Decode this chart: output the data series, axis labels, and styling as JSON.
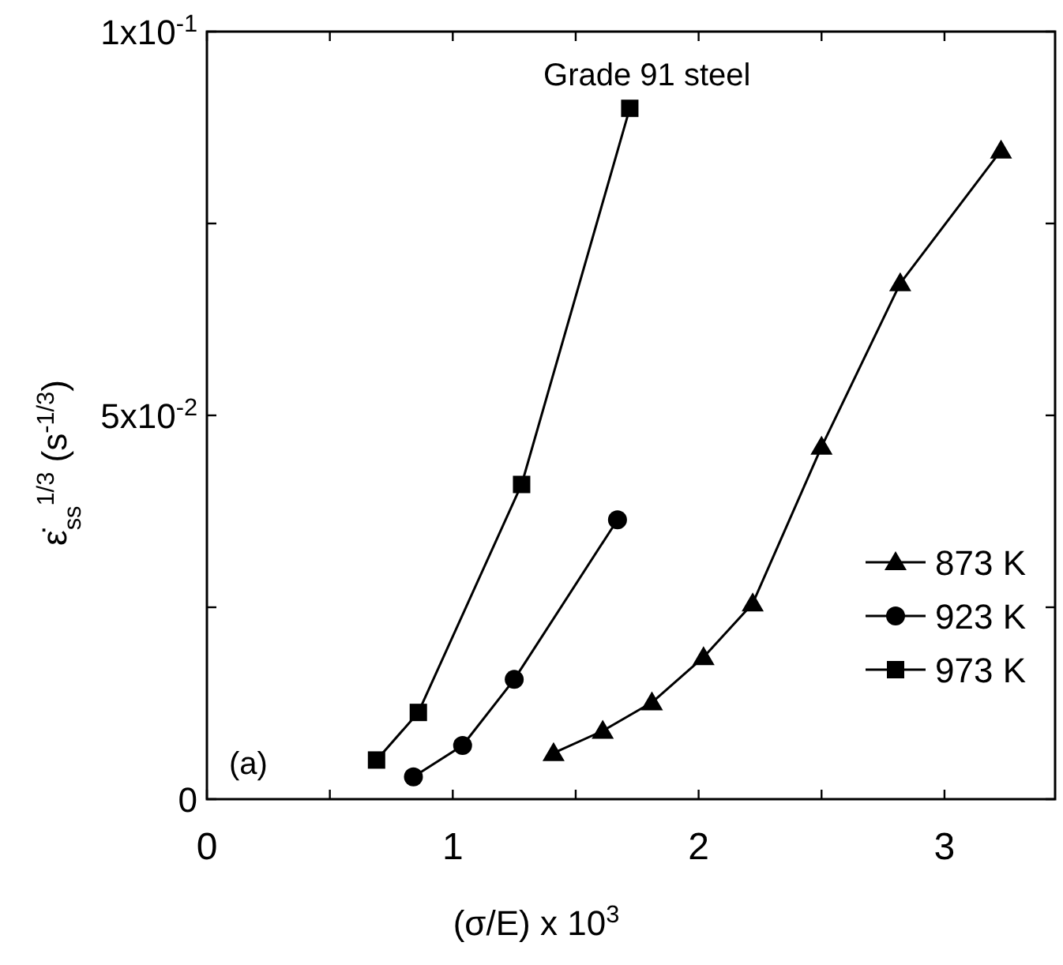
{
  "chart_data": {
    "type": "line",
    "xlabel": "(σ/E) x 10$^{3}$",
    "ylabel": "ε̇$_{ss}$$^{1/3}$ (s$^{-1/3}$)",
    "annotations": [
      "Grade 91 steel",
      "(a)"
    ],
    "xlim": [
      0,
      3.45
    ],
    "ylim": [
      0,
      0.1
    ],
    "xticks": [
      0,
      {
        "value": 0.5,
        "label": null
      },
      1,
      {
        "value": 1.5,
        "label": null
      },
      2,
      {
        "value": 2.5,
        "label": null
      },
      3
    ],
    "yticks": [
      0,
      {
        "value": 0.025,
        "label": null
      },
      {
        "value": 0.05,
        "label": "5x10$^{-2}$"
      },
      {
        "value": 0.075,
        "label": null
      },
      {
        "value": 0.1,
        "label": "1x10$^{-1}$"
      }
    ],
    "legend": "bottom right",
    "grid": false,
    "series": [
      {
        "name": "873 K",
        "color": "#000000",
        "marker": "triangle",
        "x": [
          1.41,
          1.61,
          1.81,
          2.02,
          2.22,
          2.5,
          2.82,
          3.23
        ],
        "values": [
          0.006,
          0.0089,
          0.0126,
          0.0185,
          0.0255,
          0.0459,
          0.0672,
          0.0845
        ]
      },
      {
        "name": "923 K",
        "color": "#000000",
        "marker": "circle",
        "x": [
          0.84,
          1.04,
          1.25,
          1.67
        ],
        "values": [
          0.0029,
          0.007,
          0.0156,
          0.0364
        ]
      },
      {
        "name": "973 K",
        "color": "#000000",
        "marker": "square",
        "x": [
          0.69,
          0.86,
          1.28,
          1.72
        ],
        "values": [
          0.0051,
          0.0113,
          0.041,
          0.09
        ]
      }
    ]
  }
}
